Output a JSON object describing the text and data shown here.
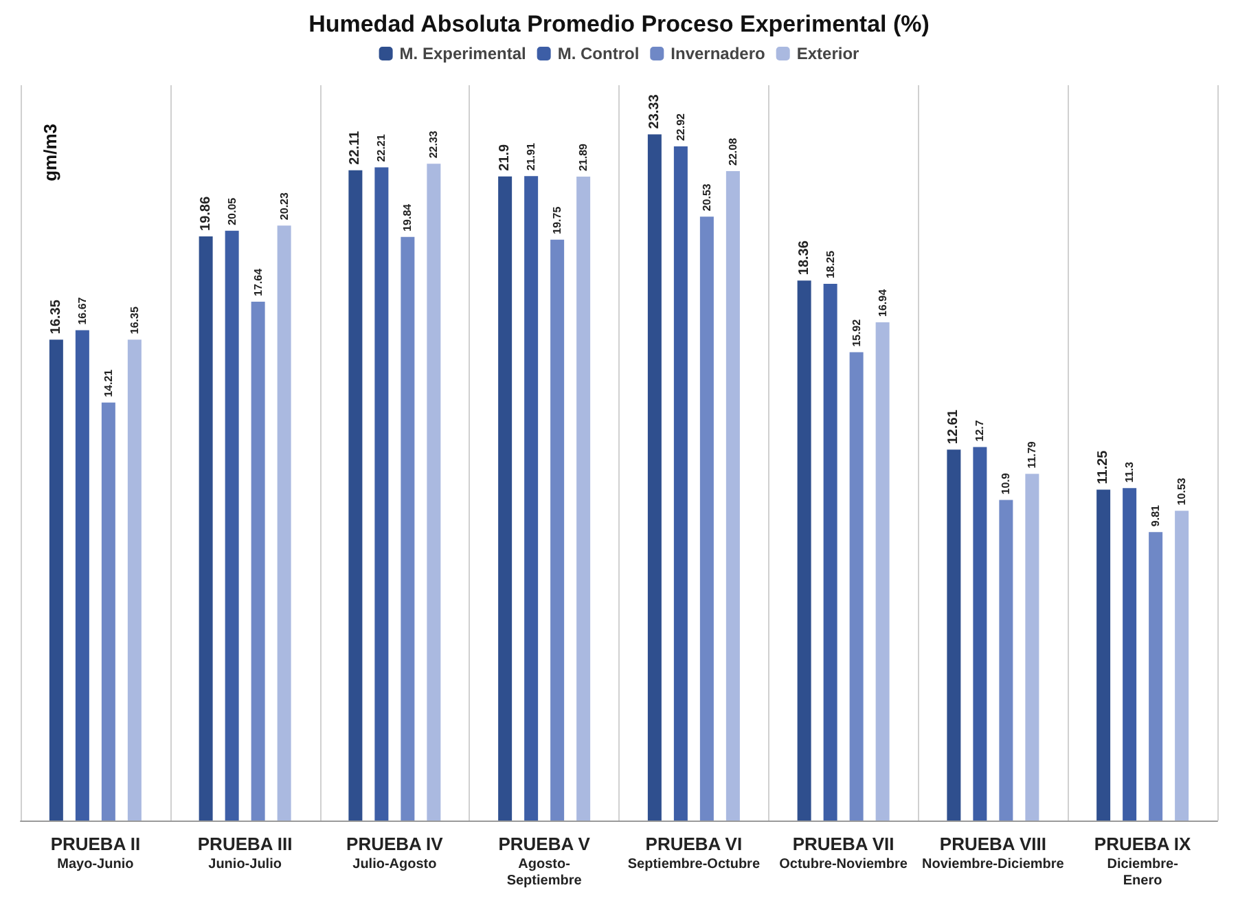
{
  "chart_data": {
    "type": "bar",
    "title": "Humedad Absoluta Promedio Proceso Experimental (%)",
    "ylabel": "gm/m3",
    "categories": [
      "PRUEBA II\nMayo-Junio",
      "PRUEBA III\nJunio-Julio",
      "PRUEBA IV\nJulio-Agosto",
      "PRUEBA V\nAgosto-\nSeptiembre",
      "PRUEBA VI\nSeptiembre-Octubre",
      "PRUEBA VII\nOctubre-Noviembre",
      "PRUEBA VIII\nNoviembre-Diciembre",
      "PRUEBA IX\nDiciembre-\nEnero"
    ],
    "series": [
      {
        "name": "M. Experimental",
        "color": "#2f4f8e",
        "values": [
          16.35,
          19.86,
          22.11,
          21.9,
          23.33,
          18.36,
          12.61,
          11.25
        ]
      },
      {
        "name": "M. Control",
        "color": "#3d5ea6",
        "values": [
          16.67,
          20.05,
          22.21,
          21.91,
          22.92,
          18.25,
          12.7,
          11.3
        ]
      },
      {
        "name": "Invernadero",
        "color": "#6f88c6",
        "values": [
          14.21,
          17.64,
          19.84,
          19.75,
          20.53,
          15.92,
          10.9,
          9.81
        ]
      },
      {
        "name": "Exterior",
        "color": "#aab9e0",
        "values": [
          16.35,
          20.23,
          22.33,
          21.89,
          22.08,
          16.94,
          11.79,
          10.53
        ]
      }
    ],
    "data_labels": true,
    "grid": "x",
    "legend": "top"
  }
}
